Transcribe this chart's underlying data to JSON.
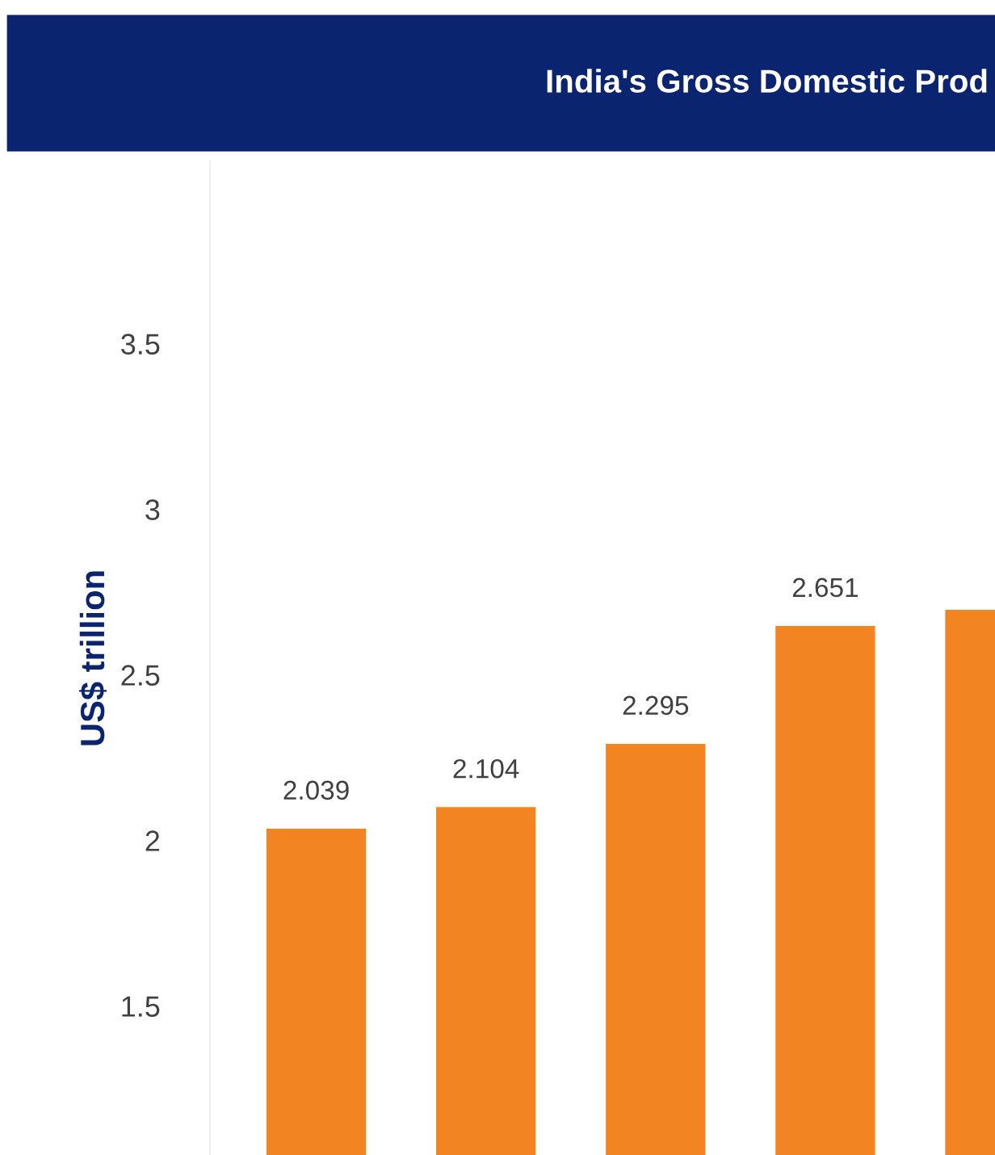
{
  "chart_data": {
    "type": "bar",
    "title": "India's Gross Domestic Prod",
    "ylabel": "US$ trillion",
    "categories": [
      null,
      null,
      null,
      null,
      null
    ],
    "values": [
      2.039,
      2.104,
      2.295,
      2.651,
      2.7
    ],
    "value_labels": [
      "2.039",
      "2.104",
      "2.295",
      "2.651",
      null
    ],
    "color": "#f28522",
    "ylim": [
      1.05,
      4.05
    ],
    "yticks": [
      1.5,
      2,
      2.5,
      3,
      3.5
    ],
    "grid": false,
    "legend": false
  }
}
